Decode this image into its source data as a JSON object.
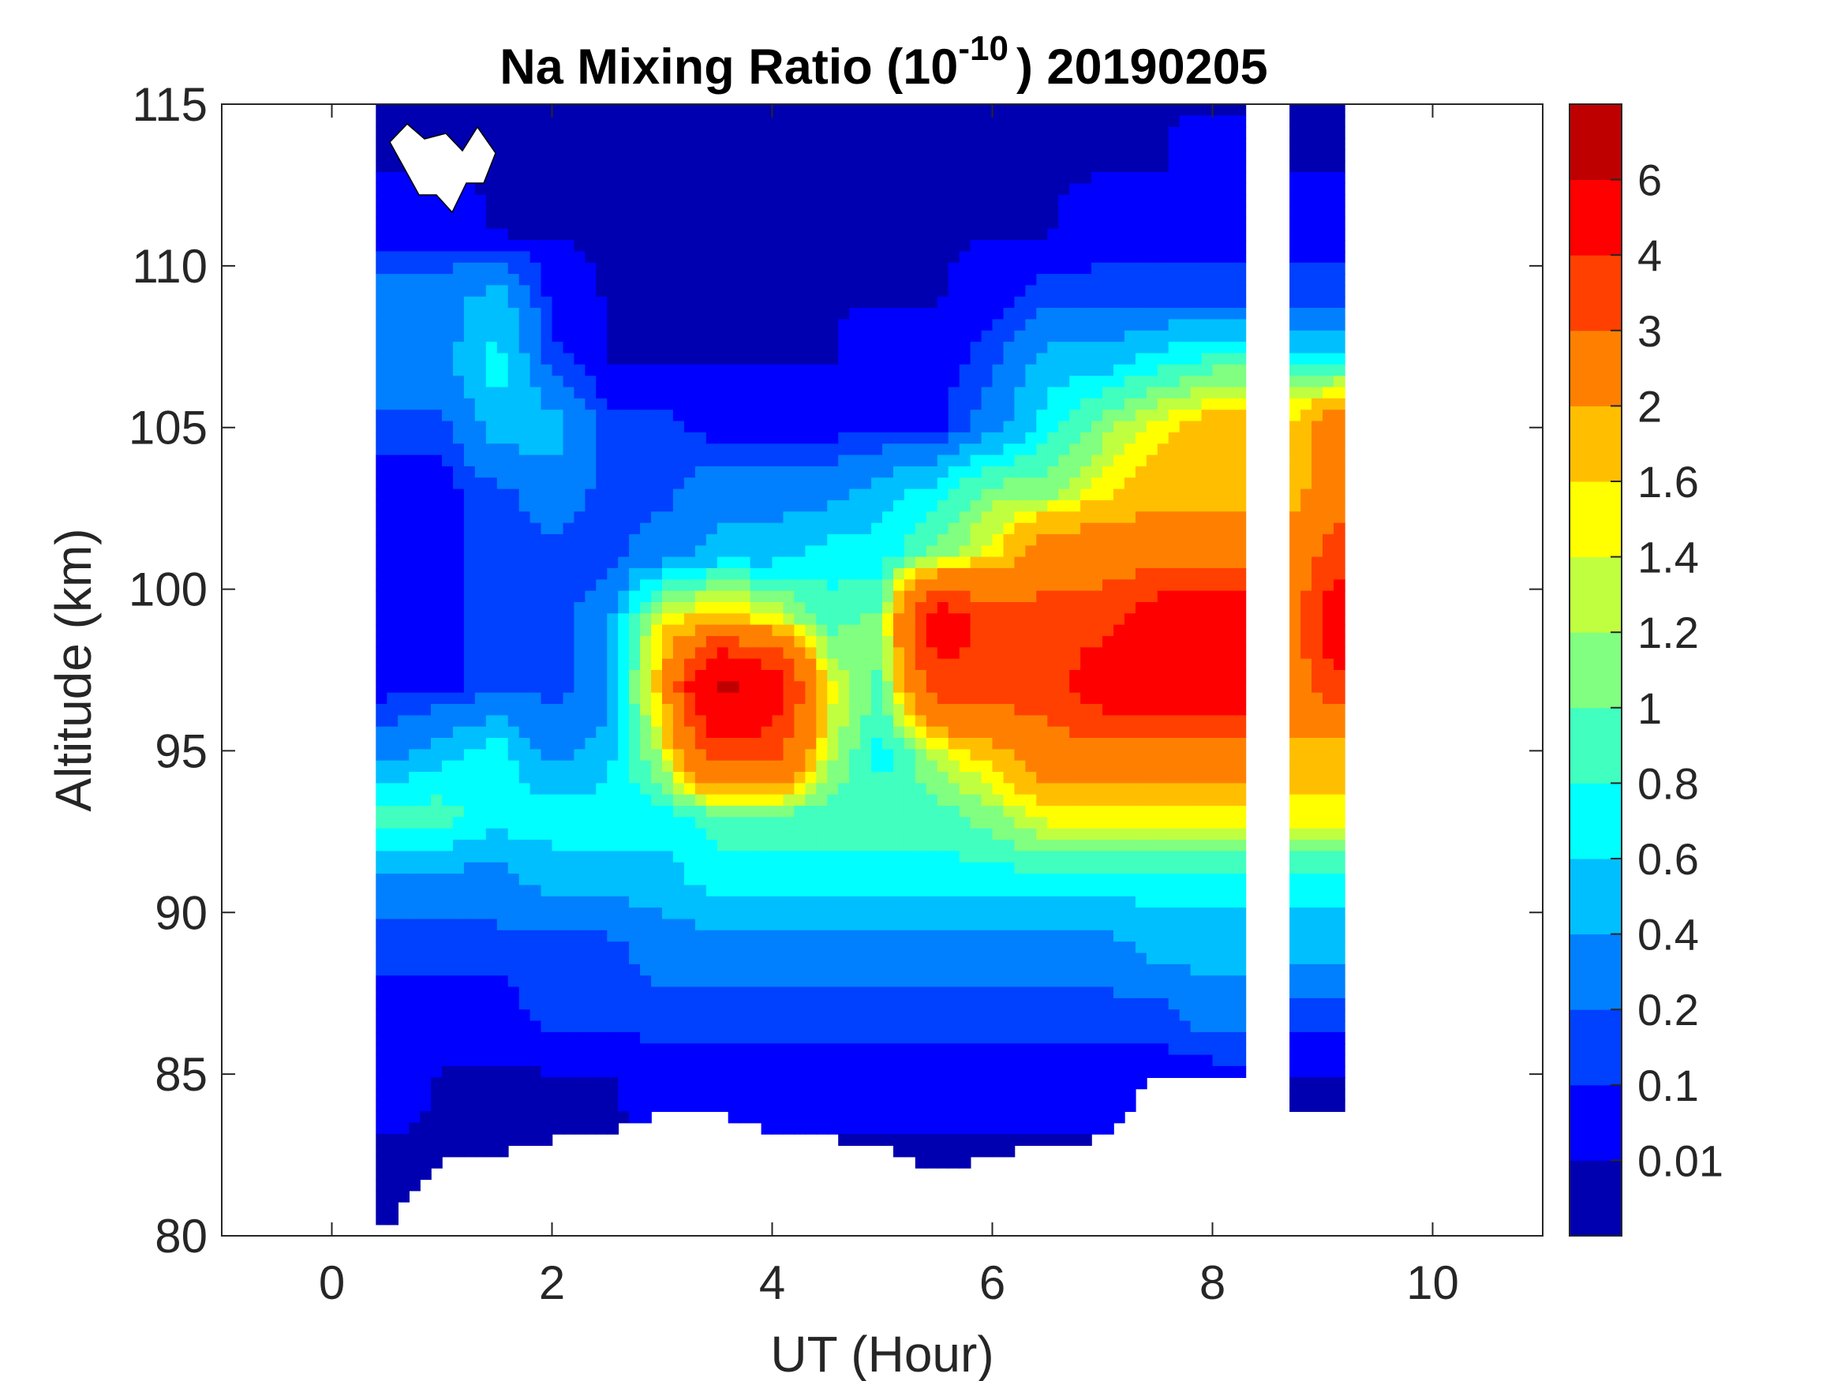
{
  "chart_data": {
    "type": "heatmap",
    "subtype": "filled-contour",
    "title": "Na Mixing Ratio (10",
    "title_exponent": "-10",
    "title_suffix": ") 20190205",
    "xlabel": "UT (Hour)",
    "ylabel": "Altitude (km)",
    "xlim": [
      -1,
      11
    ],
    "ylim": [
      80,
      115
    ],
    "xticks": [
      0,
      2,
      4,
      6,
      8,
      10
    ],
    "yticks": [
      80,
      85,
      90,
      95,
      100,
      105,
      110,
      115
    ],
    "colorbar": {
      "levels": [
        0.01,
        0.1,
        0.2,
        0.4,
        0.6,
        0.8,
        1,
        1.2,
        1.4,
        1.6,
        2,
        3,
        4,
        6
      ],
      "labels": [
        "0.01",
        "0.1",
        "0.2",
        "0.4",
        "0.6",
        "0.8",
        "1",
        "1.2",
        "1.4",
        "1.6",
        "2",
        "3",
        "4",
        "6"
      ],
      "colors": [
        "#0000B0",
        "#0000FF",
        "#0040FF",
        "#0080FF",
        "#00BFFF",
        "#00FFFF",
        "#40FFBF",
        "#80FF80",
        "#BFFF40",
        "#FFFF00",
        "#FFBF00",
        "#FF8000",
        "#FF4000",
        "#FF0000",
        "#BF0000"
      ]
    },
    "segments": [
      [
        0.4,
        8.3
      ],
      [
        8.7,
        9.2
      ]
    ],
    "x": [
      0.5,
      1,
      1.5,
      2,
      2.5,
      3,
      3.5,
      4,
      4.5,
      5,
      5.5,
      6,
      6.5,
      7,
      7.5,
      8,
      8.75,
      9.1
    ],
    "x_segment": [
      0,
      0,
      0,
      0,
      0,
      0,
      0,
      0,
      0,
      0,
      0,
      0,
      0,
      0,
      0,
      0,
      1,
      1
    ],
    "data_floor_altitude": [
      80.3,
      82.4,
      82.5,
      83,
      83.2,
      83.8,
      83.8,
      83.2,
      83,
      82.8,
      82,
      82.5,
      82.8,
      83,
      85,
      84.8,
      83.8,
      83.8
    ],
    "altitude": [
      115,
      113,
      111,
      109,
      107,
      105,
      103,
      101,
      99,
      97,
      95,
      93,
      91,
      89,
      87,
      85,
      83,
      81
    ],
    "z": [
      [
        0.005,
        0.005,
        0.005,
        0.005,
        0.005,
        0.005,
        0.005,
        0.005,
        0.005,
        0.005,
        0.005,
        0.005,
        0.005,
        0.005,
        0.005,
        0.005,
        0.005,
        0.005
      ],
      [
        0.005,
        0.005,
        0.005,
        0.005,
        0.005,
        0.005,
        0.005,
        0.005,
        0.005,
        0.005,
        0.005,
        0.005,
        0.005,
        0.005,
        0.005,
        0.05,
        0.005,
        0.005
      ],
      [
        0.05,
        0.05,
        0.005,
        0.005,
        0.005,
        0.005,
        0.005,
        0.005,
        0.005,
        0.005,
        0.005,
        0.005,
        0.005,
        0.05,
        0.05,
        0.05,
        0.05,
        0.05
      ],
      [
        0.3,
        0.3,
        0.5,
        0.05,
        0.005,
        0.005,
        0.005,
        0.005,
        0.005,
        0.005,
        0.005,
        0.05,
        0.15,
        0.15,
        0.15,
        0.15,
        0.15,
        0.15
      ],
      [
        0.3,
        0.3,
        0.7,
        0.15,
        0.005,
        0.005,
        0.005,
        0.005,
        0.005,
        0.05,
        0.05,
        0.15,
        0.5,
        0.5,
        0.7,
        0.9,
        0.7,
        0.7
      ],
      [
        0.15,
        0.15,
        0.5,
        0.5,
        0.15,
        0.15,
        0.05,
        0.05,
        0.05,
        0.05,
        0.05,
        0.3,
        0.7,
        1.1,
        1.5,
        1.8,
        1.8,
        2.5
      ],
      [
        0.05,
        0.05,
        0.15,
        0.3,
        0.15,
        0.15,
        0.3,
        0.3,
        0.3,
        0.5,
        0.7,
        1.1,
        1.1,
        1.5,
        1.8,
        1.8,
        1.8,
        2.5
      ],
      [
        0.05,
        0.05,
        0.15,
        0.15,
        0.15,
        0.3,
        0.5,
        0.5,
        0.7,
        0.7,
        1.1,
        1.5,
        2.5,
        2.5,
        2.5,
        2.5,
        2.5,
        3.5
      ],
      [
        0.05,
        0.05,
        0.15,
        0.15,
        0.3,
        1.5,
        1.8,
        1.5,
        0.9,
        1.1,
        5,
        3.5,
        3.5,
        3.5,
        5,
        5,
        2.5,
        5
      ],
      [
        0.05,
        0.05,
        0.15,
        0.15,
        0.3,
        1.8,
        6.5,
        5,
        1.5,
        0.9,
        3.5,
        3.5,
        3.5,
        5,
        5,
        5,
        2.5,
        3.5
      ],
      [
        0.3,
        0.5,
        0.7,
        0.3,
        0.5,
        1.3,
        3.5,
        3.5,
        1.3,
        0.7,
        1.3,
        1.8,
        2.5,
        2.5,
        2.5,
        2.5,
        1.8,
        1.8
      ],
      [
        0.9,
        0.9,
        0.7,
        0.7,
        0.7,
        0.7,
        0.9,
        0.9,
        0.9,
        0.9,
        0.9,
        1.1,
        1.5,
        1.5,
        1.5,
        1.5,
        1.5,
        1.5
      ],
      [
        0.3,
        0.3,
        0.3,
        0.5,
        0.5,
        0.5,
        0.7,
        0.7,
        0.7,
        0.7,
        0.7,
        0.7,
        0.7,
        0.7,
        0.7,
        0.7,
        0.7,
        0.7
      ],
      [
        0.15,
        0.15,
        0.15,
        0.15,
        0.15,
        0.3,
        0.3,
        0.3,
        0.3,
        0.3,
        0.3,
        0.3,
        0.3,
        0.3,
        0.5,
        0.5,
        0.5,
        0.5
      ],
      [
        0.05,
        0.05,
        0.05,
        0.15,
        0.15,
        0.15,
        0.15,
        0.15,
        0.15,
        0.15,
        0.15,
        0.15,
        0.15,
        0.15,
        0.15,
        0.3,
        0.15,
        0.15
      ],
      [
        0.05,
        0.005,
        0.005,
        0.005,
        0.005,
        0.05,
        0.05,
        0.05,
        0.05,
        0.05,
        0.05,
        0.05,
        0.05,
        0.05,
        0.05,
        0.05,
        0.005,
        0.005
      ],
      [
        0.005,
        0.005,
        0.005,
        0.005,
        0.005,
        0.005,
        0.005,
        0.005,
        0.005,
        0.005,
        0.005,
        0.005,
        0.005,
        0.005,
        0.005,
        0.005,
        0.005,
        0.005
      ],
      [
        0.005,
        0.005,
        0.005,
        0.005,
        0.005,
        0.005,
        0.005,
        0.005,
        0.005,
        0.005,
        0.005,
        0.005,
        0.005,
        0.005,
        0.005,
        0.005,
        0.005,
        0.005
      ]
    ]
  }
}
